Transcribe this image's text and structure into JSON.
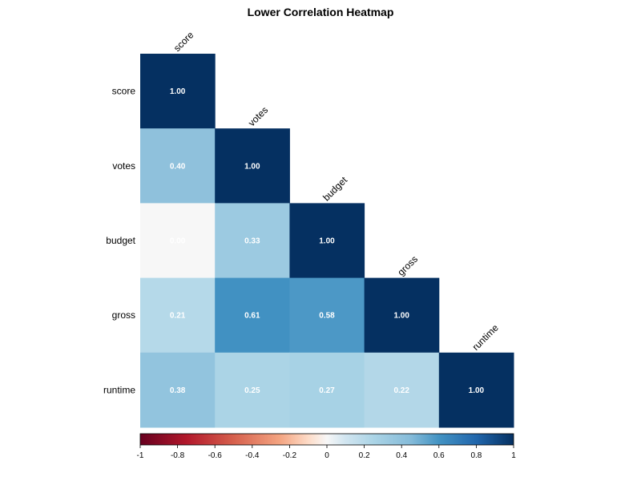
{
  "chart_data": {
    "type": "heatmap",
    "title": "Lower Correlation Heatmap",
    "variables": [
      "score",
      "votes",
      "budget",
      "gross",
      "runtime"
    ],
    "matrix": [
      [
        1.0,
        null,
        null,
        null,
        null
      ],
      [
        0.4,
        1.0,
        null,
        null,
        null
      ],
      [
        0.0,
        0.33,
        1.0,
        null,
        null
      ],
      [
        0.21,
        0.61,
        0.58,
        1.0,
        null
      ],
      [
        0.38,
        0.25,
        0.27,
        0.22,
        1.0
      ]
    ],
    "cell_labels": [
      [
        "1.00",
        "",
        "",
        "",
        ""
      ],
      [
        "0.40",
        "1.00",
        "",
        "",
        ""
      ],
      [
        "0.00",
        "0.33",
        "1.00",
        "",
        ""
      ],
      [
        "0.21",
        "0.61",
        "0.58",
        "1.00",
        ""
      ],
      [
        "0.38",
        "0.25",
        "0.27",
        "0.22",
        "1.00"
      ]
    ],
    "colorbar": {
      "range": [
        -1,
        1
      ],
      "ticks": [
        -1,
        -0.8,
        -0.6,
        -0.4,
        -0.2,
        0,
        0.2,
        0.4,
        0.6,
        0.8,
        1
      ],
      "tick_labels": [
        "-1",
        "-0.8",
        "-0.6",
        "-0.4",
        "-0.2",
        "0",
        "0.2",
        "0.4",
        "0.6",
        "0.8",
        "1"
      ],
      "placement": "bottom"
    },
    "palette": {
      "low": "#67001f",
      "mid": "#f7f7f7",
      "high": "#053061"
    }
  }
}
